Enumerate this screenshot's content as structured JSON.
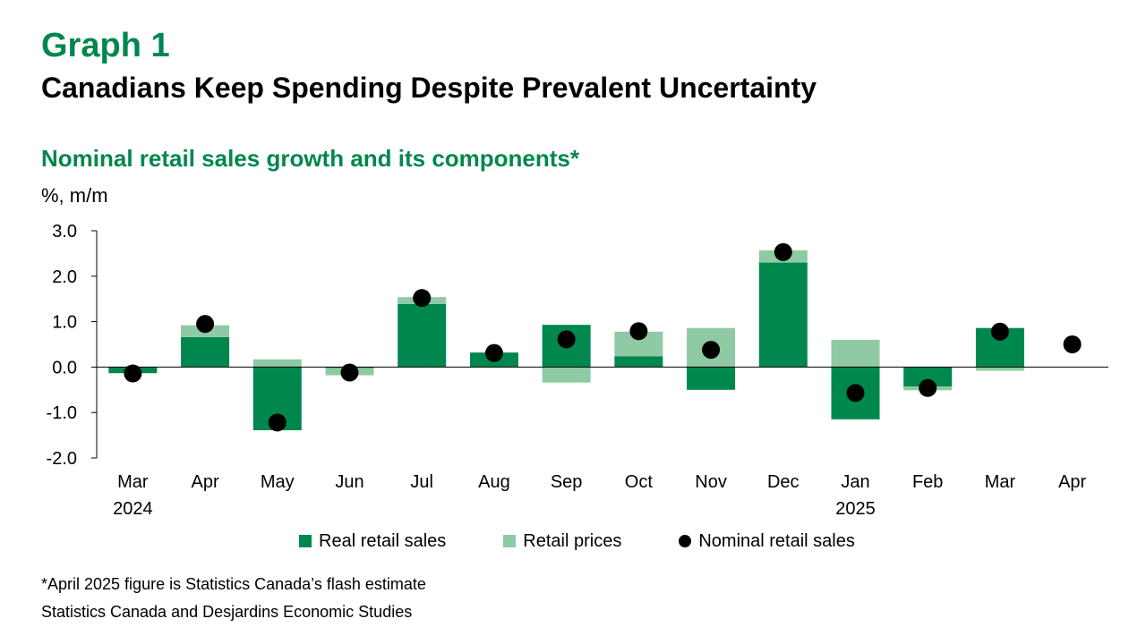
{
  "header": {
    "graph_label": "Graph 1",
    "title": "Canadians Keep Spending Despite Prevalent Uncertainty",
    "subtitle": "Nominal retail sales growth and its components*",
    "unit": "%, m/m"
  },
  "footer": {
    "footnote": "*April 2025 figure is Statistics Canada’s flash estimate",
    "source": "Statistics Canada and Desjardins Economic Studies"
  },
  "colors": {
    "real": "#00874e",
    "prices": "#8fcaa4",
    "nominal": "#000000",
    "accent": "#00874e"
  },
  "chart_data": {
    "type": "bar",
    "stacked": true,
    "categories": [
      "Mar",
      "Apr",
      "May",
      "Jun",
      "Jul",
      "Aug",
      "Sep",
      "Oct",
      "Nov",
      "Dec",
      "Jan",
      "Feb",
      "Mar",
      "Apr"
    ],
    "year_labels": [
      "2024",
      "",
      "",
      "",
      "",
      "",
      "",
      "",
      "",
      "",
      "2025",
      "",
      "",
      ""
    ],
    "series": [
      {
        "name": "Real retail sales",
        "kind": "bar",
        "values": [
          -0.13,
          0.66,
          -1.39,
          -0.02,
          1.39,
          0.32,
          0.93,
          0.24,
          -0.5,
          2.3,
          -1.15,
          -0.43,
          0.86,
          null
        ]
      },
      {
        "name": "Retail prices",
        "kind": "bar",
        "values": [
          -0.01,
          0.26,
          0.17,
          -0.16,
          0.15,
          0.0,
          -0.34,
          0.54,
          0.86,
          0.27,
          0.6,
          -0.08,
          -0.08,
          null
        ]
      },
      {
        "name": "Nominal retail sales",
        "kind": "dot",
        "values": [
          -0.14,
          0.95,
          -1.22,
          -0.12,
          1.52,
          0.31,
          0.61,
          0.79,
          0.38,
          2.53,
          -0.57,
          -0.46,
          0.78,
          0.5
        ]
      }
    ],
    "ylim": [
      -2.0,
      3.0
    ],
    "yticks": [
      "3.0",
      "2.0",
      "1.0",
      "0.0",
      "-1.0",
      "-2.0"
    ],
    "grid": false,
    "legend_position": "bottom"
  }
}
